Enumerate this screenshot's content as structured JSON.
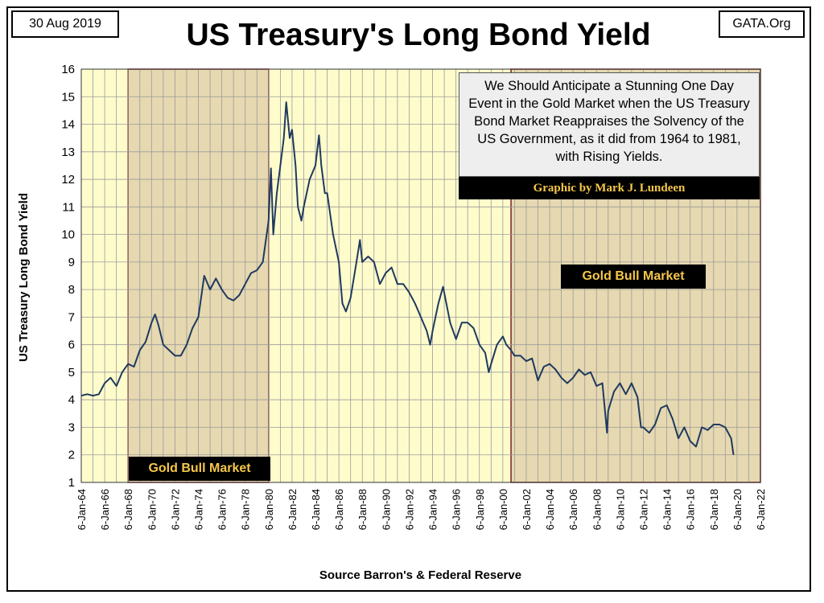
{
  "header": {
    "date": "30 Aug 2019",
    "org": "GATA.Org"
  },
  "annotation": {
    "text": "We Should Anticipate a Stunning One Day Event in the Gold Market when the US Treasury Bond Market Reappraises the Solvency of the US Government, as it did from 1964 to 1981, with Rising Yields.",
    "credit": "Graphic by Mark J. Lundeen"
  },
  "colors": {
    "plot_background": "#fffccc",
    "shaded_background": "#e6d8b0",
    "line": "#1f3a5f",
    "shade_border": "#7a2020",
    "label_text": "#f5c64a"
  },
  "chart_data": {
    "type": "line",
    "title": "US Treasury's Long Bond Yield",
    "xlabel": "Source Barron's & Federal Reserve",
    "ylabel": "US Treasury  Long Bond Yield",
    "ylim": [
      1,
      16
    ],
    "yticks": [
      "1",
      "2",
      "3",
      "4",
      "5",
      "6",
      "7",
      "8",
      "9",
      "10",
      "11",
      "12",
      "13",
      "14",
      "15",
      "16"
    ],
    "xlim": [
      1964,
      2022
    ],
    "xticks": [
      "6-Jan-64",
      "6-Jan-66",
      "6-Jan-68",
      "6-Jan-70",
      "6-Jan-72",
      "6-Jan-74",
      "6-Jan-76",
      "6-Jan-78",
      "6-Jan-80",
      "6-Jan-82",
      "6-Jan-84",
      "6-Jan-86",
      "6-Jan-88",
      "6-Jan-90",
      "6-Jan-92",
      "6-Jan-94",
      "6-Jan-96",
      "6-Jan-98",
      "6-Jan-00",
      "6-Jan-02",
      "6-Jan-04",
      "6-Jan-06",
      "6-Jan-08",
      "6-Jan-10",
      "6-Jan-12",
      "6-Jan-14",
      "6-Jan-16",
      "6-Jan-18",
      "6-Jan-20",
      "6-Jan-22"
    ],
    "grid": true,
    "shaded_regions": [
      {
        "label": "Gold Bull Market",
        "start": 1968.0,
        "end": 1980.0
      },
      {
        "label": "Gold Bull Market",
        "start": 2000.7,
        "end": 2022.0
      }
    ],
    "series": [
      {
        "x": [
          1964.0,
          1964.5,
          1965.0,
          1965.5,
          1966.0,
          1966.5,
          1967.0,
          1967.5,
          1968.0,
          1968.5,
          1969.0,
          1969.5,
          1970.0,
          1970.3,
          1970.6,
          1971.0,
          1971.5,
          1972.0,
          1972.5,
          1973.0,
          1973.5,
          1974.0,
          1974.5,
          1974.7,
          1975.0,
          1975.5,
          1976.0,
          1976.5,
          1977.0,
          1977.5,
          1978.0,
          1978.5,
          1979.0,
          1979.5,
          1980.0,
          1980.2,
          1980.4,
          1980.7,
          1981.0,
          1981.3,
          1981.5,
          1981.8,
          1982.0,
          1982.3,
          1982.5,
          1982.8,
          1983.0,
          1983.5,
          1984.0,
          1984.3,
          1984.5,
          1984.8,
          1985.0,
          1985.5,
          1986.0,
          1986.3,
          1986.6,
          1987.0,
          1987.5,
          1987.8,
          1988.0,
          1988.5,
          1989.0,
          1989.5,
          1990.0,
          1990.5,
          1991.0,
          1991.5,
          1992.0,
          1992.5,
          1993.0,
          1993.5,
          1993.8,
          1994.0,
          1994.5,
          1994.9,
          1995.5,
          1996.0,
          1996.5,
          1997.0,
          1997.5,
          1998.0,
          1998.5,
          1998.8,
          1999.0,
          1999.5,
          2000.0,
          2000.3,
          2000.7,
          2001.0,
          2001.5,
          2002.0,
          2002.5,
          2003.0,
          2003.5,
          2004.0,
          2004.5,
          2005.0,
          2005.5,
          2006.0,
          2006.5,
          2007.0,
          2007.5,
          2008.0,
          2008.5,
          2008.9,
          2009.0,
          2009.5,
          2010.0,
          2010.5,
          2011.0,
          2011.5,
          2011.8,
          2012.0,
          2012.5,
          2013.0,
          2013.5,
          2014.0,
          2014.5,
          2015.0,
          2015.5,
          2016.0,
          2016.5,
          2017.0,
          2017.5,
          2018.0,
          2018.5,
          2019.0,
          2019.5,
          2019.7
        ],
        "values": [
          4.15,
          4.2,
          4.15,
          4.2,
          4.6,
          4.8,
          4.5,
          5.0,
          5.3,
          5.2,
          5.8,
          6.1,
          6.8,
          7.1,
          6.7,
          6.0,
          5.8,
          5.6,
          5.6,
          6.0,
          6.6,
          7.0,
          8.5,
          8.3,
          8.0,
          8.4,
          8.0,
          7.7,
          7.6,
          7.8,
          8.2,
          8.6,
          8.7,
          9.0,
          10.5,
          12.4,
          10.0,
          11.5,
          12.5,
          13.5,
          14.8,
          13.5,
          13.8,
          12.5,
          11.0,
          10.5,
          11.0,
          12.0,
          12.5,
          13.6,
          12.5,
          11.5,
          11.5,
          10.0,
          9.0,
          7.5,
          7.2,
          7.7,
          9.0,
          9.8,
          9.0,
          9.2,
          9.0,
          8.2,
          8.6,
          8.8,
          8.2,
          8.2,
          7.9,
          7.5,
          7.0,
          6.5,
          6.0,
          6.5,
          7.5,
          8.1,
          6.8,
          6.2,
          6.8,
          6.8,
          6.6,
          6.0,
          5.7,
          5.0,
          5.3,
          6.0,
          6.3,
          6.0,
          5.8,
          5.6,
          5.6,
          5.4,
          5.5,
          4.7,
          5.2,
          5.3,
          5.1,
          4.8,
          4.6,
          4.8,
          5.1,
          4.9,
          5.0,
          4.5,
          4.6,
          2.8,
          3.6,
          4.3,
          4.6,
          4.2,
          4.6,
          4.1,
          3.0,
          3.0,
          2.8,
          3.1,
          3.7,
          3.8,
          3.3,
          2.6,
          3.0,
          2.5,
          2.3,
          3.0,
          2.9,
          3.1,
          3.1,
          3.0,
          2.6,
          2.0
        ]
      }
    ]
  }
}
